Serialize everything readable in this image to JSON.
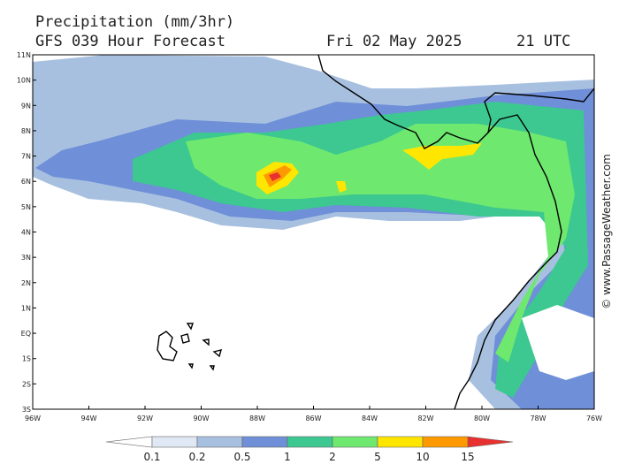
{
  "header": {
    "title": "Precipitation (mm/3hr)",
    "subtitle": "GFS 039 Hour Forecast",
    "date": "Fri 02 May 2025",
    "time": "21 UTC"
  },
  "axes": {
    "lat_labels": [
      "11N",
      "10N",
      "9N",
      "8N",
      "7N",
      "6N",
      "5N",
      "4N",
      "3N",
      "2N",
      "1N",
      "EQ",
      "1S",
      "2S",
      "3S"
    ],
    "lon_labels": [
      "96W",
      "94W",
      "92W",
      "90W",
      "88W",
      "86W",
      "84W",
      "82W",
      "80W",
      "78W",
      "76W"
    ]
  },
  "legend": {
    "labels": [
      "0.1",
      "0.2",
      "0.5",
      "1",
      "2",
      "5",
      "10",
      "15"
    ]
  },
  "credit": "© www.PassageWeather.com"
}
